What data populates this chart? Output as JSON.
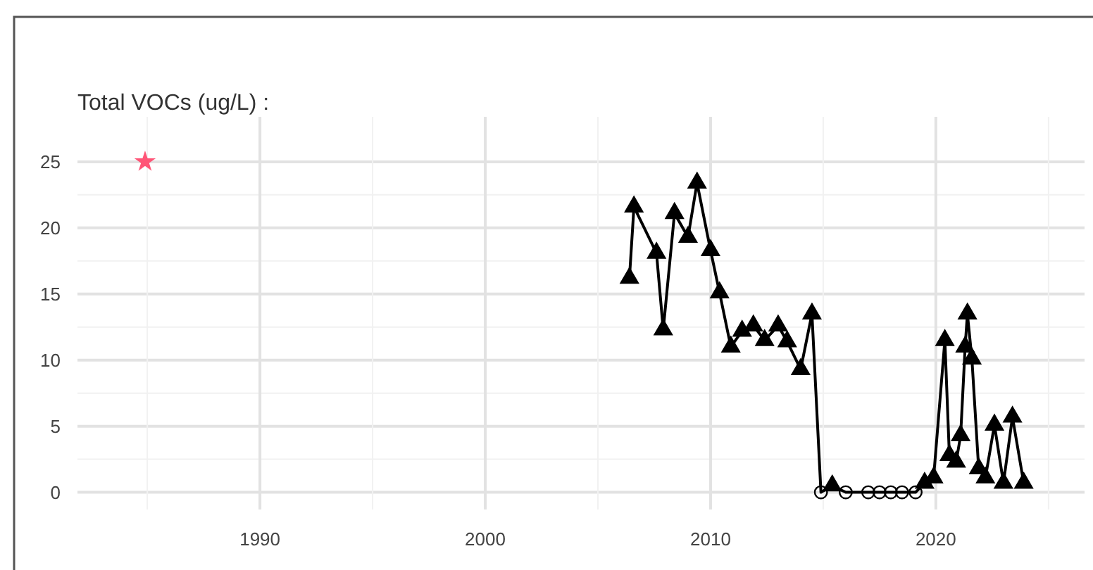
{
  "chart_data": {
    "type": "line",
    "title": "Total VOCs (ug/L) :",
    "xlim": [
      1981.9,
      2026.6
    ],
    "xticks": [
      {
        "value": 1985,
        "label": null
      },
      1990,
      {
        "value": 1995,
        "label": null
      },
      2000,
      {
        "value": 2005,
        "label": null
      },
      2010,
      {
        "value": 2015,
        "label": null
      },
      2020,
      {
        "value": 2025,
        "label": null
      }
    ],
    "ylim": [
      -1.3,
      28.4
    ],
    "yticks": [
      0,
      {
        "value": 2.5,
        "label": null
      },
      5,
      {
        "value": 7.5,
        "label": null
      },
      10,
      {
        "value": 12.5,
        "label": null
      },
      15,
      {
        "value": 17.5,
        "label": null
      },
      20,
      {
        "value": 22.5,
        "label": null
      },
      25
    ],
    "grid": true,
    "line_style": "solid",
    "series": [
      {
        "marker": "none",
        "color": "#000000",
        "x": [
          2006.4,
          2006.6,
          2007.6,
          2007.9,
          2008.4,
          2009.0,
          2009.4,
          2010.0,
          2010.4,
          2010.9,
          2011.4,
          2011.9,
          2012.4,
          2013.0,
          2013.4,
          2014.0,
          2014.5,
          2014.9,
          2015.4,
          2016.0,
          2017.0,
          2017.5,
          2018.0,
          2018.5,
          2019.1,
          2019.5,
          2019.9,
          2020.4,
          2020.6,
          2020.9,
          2021.1,
          2021.3,
          2021.4,
          2021.6,
          2021.9,
          2022.2,
          2022.6,
          2023.0,
          2023.4,
          2023.9
        ],
        "values": [
          16.2,
          21.6,
          18.1,
          12.3,
          21.1,
          19.3,
          23.4,
          18.3,
          15.1,
          11.0,
          12.2,
          12.6,
          11.5,
          12.6,
          11.4,
          9.3,
          13.5,
          0,
          0.5,
          0,
          0,
          0,
          0,
          0,
          0,
          0.7,
          1.1,
          11.5,
          2.8,
          2.3,
          4.3,
          11.0,
          13.5,
          10.1,
          1.8,
          1.1,
          5.1,
          0.7,
          5.7,
          0.7
        ]
      },
      {
        "type": "scatter",
        "marker": "triangle",
        "color": "#000000",
        "x": [
          2006.4,
          2006.6,
          2007.6,
          2007.9,
          2008.4,
          2009.0,
          2009.4,
          2010.0,
          2010.4,
          2010.9,
          2011.4,
          2011.9,
          2012.4,
          2013.0,
          2013.4,
          2014.0,
          2014.5,
          2015.4,
          2019.5,
          2019.9,
          2020.4,
          2020.6,
          2020.9,
          2021.1,
          2021.3,
          2021.4,
          2021.6,
          2021.9,
          2022.2,
          2022.6,
          2023.0,
          2023.4,
          2023.9
        ],
        "values": [
          16.2,
          21.6,
          18.1,
          12.3,
          21.1,
          19.3,
          23.4,
          18.3,
          15.1,
          11.0,
          12.2,
          12.6,
          11.5,
          12.6,
          11.4,
          9.3,
          13.5,
          0.5,
          0.7,
          1.1,
          11.5,
          2.8,
          2.3,
          4.3,
          11.0,
          13.5,
          10.1,
          1.8,
          1.1,
          5.1,
          0.7,
          5.7,
          0.7
        ]
      },
      {
        "type": "scatter",
        "marker": "circle",
        "color": "#000000",
        "x": [
          2014.9,
          2016.0,
          2017.0,
          2017.5,
          2018.0,
          2018.5,
          2019.1
        ],
        "values": [
          0,
          0,
          0,
          0,
          0,
          0,
          0
        ]
      },
      {
        "type": "scatter",
        "marker": "star",
        "color": "#ff5577",
        "x": [
          1984.9
        ],
        "values": [
          25
        ]
      }
    ]
  }
}
